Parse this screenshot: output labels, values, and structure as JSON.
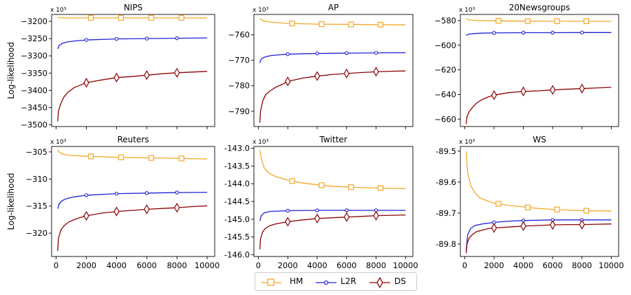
{
  "colors": {
    "HM": "#f5a623",
    "L2R": "#1f1fd6",
    "DS": "#8b0000"
  },
  "figure": {
    "ylabel": "Log-likelihood",
    "exponent_label": "x 10³"
  },
  "legend": {
    "entries": [
      "HM",
      "L2R",
      "DS"
    ]
  },
  "chart_data": [
    {
      "type": "line",
      "title": "NIPS",
      "xlim": [
        -300,
        10500
      ],
      "ylim": [
        -3505,
        -3180
      ],
      "yticks": [
        -3200,
        -3250,
        -3300,
        -3350,
        -3400,
        -3450,
        -3500
      ],
      "xticks": [],
      "show_xticklabels": false,
      "ylabel": "Log-likelihood",
      "series": [
        {
          "name": "HM",
          "marker": "square",
          "x": [
            100,
            300,
            1000,
            2000,
            4000,
            6000,
            8000,
            10000
          ],
          "y": [
            -3188,
            -3190,
            -3190,
            -3190,
            -3190,
            -3190,
            -3190,
            -3190
          ],
          "markers_at": [
            2300,
            4300,
            6300,
            8300
          ]
        },
        {
          "name": "L2R",
          "marker": "circle",
          "x": [
            100,
            200,
            400,
            700,
            1200,
            2000,
            4000,
            6000,
            8000,
            10000
          ],
          "y": [
            -3280,
            -3270,
            -3264,
            -3260,
            -3257,
            -3254,
            -3251,
            -3250,
            -3249,
            -3248
          ],
          "markers_at": [
            2000,
            4000,
            6000,
            8000
          ]
        },
        {
          "name": "DS",
          "marker": "diamond",
          "x": [
            100,
            150,
            300,
            500,
            800,
            1200,
            1600,
            2000,
            3000,
            4000,
            5000,
            6000,
            7000,
            8000,
            9000,
            10000
          ],
          "y": [
            -3490,
            -3460,
            -3440,
            -3420,
            -3405,
            -3392,
            -3385,
            -3378,
            -3370,
            -3363,
            -3360,
            -3356,
            -3352,
            -3349,
            -3347,
            -3345
          ],
          "markers_at": [
            2000,
            4000,
            6000,
            8000
          ]
        }
      ]
    },
    {
      "type": "line",
      "title": "AP",
      "xlim": [
        -300,
        10500
      ],
      "ylim": [
        -796,
        -752
      ],
      "yticks": [
        -760,
        -770,
        -780,
        -790
      ],
      "xticks": [],
      "show_xticklabels": false,
      "ylabel": "",
      "series": [
        {
          "name": "HM",
          "marker": "square",
          "x": [
            100,
            300,
            800,
            2000,
            4000,
            6000,
            8000,
            10000
          ],
          "y": [
            -753.5,
            -754.5,
            -755.0,
            -755.5,
            -755.8,
            -755.9,
            -756.0,
            -756.1
          ],
          "markers_at": [
            2300,
            4300,
            6300,
            8300
          ]
        },
        {
          "name": "L2R",
          "marker": "circle",
          "x": [
            100,
            200,
            400,
            800,
            1300,
            2000,
            4000,
            6000,
            8000,
            10000
          ],
          "y": [
            -771,
            -769.5,
            -768.8,
            -768.2,
            -767.9,
            -767.6,
            -767.3,
            -767.2,
            -767.1,
            -767.0
          ],
          "markers_at": [
            2000,
            4000,
            6000,
            8000
          ]
        },
        {
          "name": "DS",
          "marker": "diamond",
          "x": [
            100,
            150,
            300,
            500,
            800,
            1200,
            1600,
            2000,
            3000,
            4000,
            5000,
            6000,
            7000,
            8000,
            9000,
            10000
          ],
          "y": [
            -794.5,
            -790,
            -786,
            -783.5,
            -782,
            -780.5,
            -779.5,
            -778.3,
            -777,
            -776.2,
            -775.6,
            -775.2,
            -774.8,
            -774.5,
            -774.3,
            -774.2
          ],
          "markers_at": [
            2000,
            4000,
            6000,
            8000
          ]
        }
      ]
    },
    {
      "type": "line",
      "title": "20Newsgroups",
      "xlim": [
        -300,
        10500
      ],
      "ylim": [
        -666,
        -575
      ],
      "yticks": [
        -580,
        -600,
        -620,
        -640,
        -660
      ],
      "xticks": [],
      "show_xticklabels": false,
      "ylabel": "",
      "series": [
        {
          "name": "HM",
          "marker": "square",
          "x": [
            100,
            300,
            1000,
            2000,
            4000,
            6000,
            8000,
            10000
          ],
          "y": [
            -578.5,
            -579.5,
            -580,
            -580.2,
            -580.4,
            -580.5,
            -580.5,
            -580.6
          ],
          "markers_at": [
            2300,
            4300,
            6300,
            8300
          ]
        },
        {
          "name": "L2R",
          "marker": "circle",
          "x": [
            100,
            250,
            600,
            1200,
            2000,
            4000,
            6000,
            8000,
            10000
          ],
          "y": [
            -592,
            -591,
            -590.5,
            -590.2,
            -590,
            -589.8,
            -589.8,
            -589.7,
            -589.7
          ],
          "markers_at": [
            2000,
            4000,
            6000,
            8000
          ]
        },
        {
          "name": "DS",
          "marker": "diamond",
          "x": [
            100,
            150,
            300,
            500,
            800,
            1200,
            1600,
            2000,
            3000,
            4000,
            5000,
            6000,
            7000,
            8000,
            9000,
            10000
          ],
          "y": [
            -664,
            -658,
            -654,
            -651,
            -647,
            -644,
            -642,
            -640.5,
            -638.5,
            -637.5,
            -637,
            -636.3,
            -635.7,
            -635.2,
            -634.7,
            -634.2
          ],
          "markers_at": [
            2000,
            4000,
            6000,
            8000
          ]
        }
      ]
    },
    {
      "type": "line",
      "title": "Reuters",
      "xlim": [
        -300,
        10500
      ],
      "ylim": [
        -324.3,
        -304
      ],
      "yticks": [
        -305,
        -310,
        -315,
        -320
      ],
      "xticks": [
        0,
        2000,
        4000,
        6000,
        8000,
        10000
      ],
      "show_xticklabels": true,
      "ylabel": "Log-likelihood",
      "series": [
        {
          "name": "HM",
          "marker": "square",
          "x": [
            100,
            200,
            400,
            800,
            1200,
            2000,
            4000,
            6000,
            8000,
            10000
          ],
          "y": [
            -304.6,
            -305.0,
            -305.4,
            -305.6,
            -305.7,
            -305.8,
            -306.0,
            -306.1,
            -306.2,
            -306.3
          ],
          "markers_at": [
            2300,
            4300,
            6300,
            8300
          ]
        },
        {
          "name": "L2R",
          "marker": "circle",
          "x": [
            100,
            200,
            400,
            700,
            1200,
            2000,
            4000,
            6000,
            8000,
            10000
          ],
          "y": [
            -315.5,
            -314.6,
            -314.0,
            -313.6,
            -313.3,
            -313.0,
            -312.7,
            -312.6,
            -312.5,
            -312.45
          ],
          "markers_at": [
            2000,
            4000,
            6000,
            8000
          ]
        },
        {
          "name": "DS",
          "marker": "diamond",
          "x": [
            100,
            150,
            300,
            500,
            800,
            1200,
            1600,
            2000,
            3000,
            4000,
            5000,
            6000,
            7000,
            8000,
            9000,
            10000
          ],
          "y": [
            -323.3,
            -321,
            -319.5,
            -318.7,
            -318.0,
            -317.5,
            -317.1,
            -316.8,
            -316.3,
            -316.0,
            -315.8,
            -315.6,
            -315.45,
            -315.3,
            -315.1,
            -314.95
          ],
          "markers_at": [
            2000,
            4000,
            6000,
            8000
          ]
        }
      ]
    },
    {
      "type": "line",
      "title": "Twitter",
      "xlim": [
        -300,
        10500
      ],
      "ylim": [
        -146.05,
        -142.95
      ],
      "yticks": [
        -143.0,
        -143.5,
        -144.0,
        -144.5,
        -145.0,
        -145.5,
        -146.0
      ],
      "ytick_labels": [
        "-143.0",
        "-143.5",
        "-144.0",
        "-144.5",
        "-145.0",
        "-145.5",
        "-146.0"
      ],
      "xticks": [
        0,
        2000,
        4000,
        6000,
        8000,
        10000
      ],
      "show_xticklabels": true,
      "ylabel": "",
      "series": [
        {
          "name": "HM",
          "marker": "square",
          "x": [
            100,
            200,
            400,
            700,
            1200,
            2000,
            3000,
            4000,
            5000,
            6000,
            7000,
            8000,
            9000,
            10000
          ],
          "y": [
            -143.05,
            -143.3,
            -143.55,
            -143.7,
            -143.8,
            -143.9,
            -143.98,
            -144.03,
            -144.07,
            -144.09,
            -144.11,
            -144.12,
            -144.13,
            -144.14
          ],
          "markers_at": [
            2300,
            4300,
            6300,
            8300
          ]
        },
        {
          "name": "L2R",
          "marker": "circle",
          "x": [
            100,
            200,
            400,
            800,
            1500,
            2000,
            4000,
            6000,
            8000,
            10000
          ],
          "y": [
            -145.05,
            -144.9,
            -144.82,
            -144.78,
            -144.77,
            -144.76,
            -144.75,
            -144.75,
            -144.75,
            -144.75
          ],
          "markers_at": [
            2000,
            4000,
            6000,
            8000
          ]
        },
        {
          "name": "DS",
          "marker": "diamond",
          "x": [
            100,
            150,
            300,
            500,
            800,
            1200,
            1600,
            2000,
            3000,
            4000,
            5000,
            6000,
            7000,
            8000,
            9000,
            10000
          ],
          "y": [
            -145.85,
            -145.55,
            -145.35,
            -145.25,
            -145.18,
            -145.13,
            -145.1,
            -145.07,
            -145.02,
            -144.98,
            -144.96,
            -144.94,
            -144.92,
            -144.9,
            -144.89,
            -144.88
          ],
          "markers_at": [
            2000,
            4000,
            6000,
            8000
          ]
        }
      ]
    },
    {
      "type": "line",
      "title": "WS",
      "xlim": [
        -300,
        10500
      ],
      "ylim": [
        -89.84,
        -89.485
      ],
      "yticks": [
        -89.5,
        -89.6,
        -89.7,
        -89.8
      ],
      "ytick_labels": [
        "-89.5",
        "-89.6",
        "-89.7",
        "-89.8"
      ],
      "xticks": [
        0,
        2000,
        4000,
        6000,
        8000,
        10000
      ],
      "show_xticklabels": true,
      "ylabel": "",
      "series": [
        {
          "name": "HM",
          "marker": "square",
          "x": [
            100,
            200,
            400,
            700,
            1000,
            1500,
            2000,
            3000,
            4000,
            5000,
            6000,
            7000,
            8000,
            9000,
            10000
          ],
          "y": [
            -89.5,
            -89.57,
            -89.61,
            -89.635,
            -89.65,
            -89.66,
            -89.668,
            -89.675,
            -89.68,
            -89.685,
            -89.688,
            -89.69,
            -89.692,
            -89.693,
            -89.693
          ],
          "markers_at": [
            2300,
            4300,
            6300,
            8300
          ]
        },
        {
          "name": "L2R",
          "marker": "circle",
          "x": [
            100,
            200,
            400,
            700,
            1200,
            2000,
            3000,
            4000,
            6000,
            8000,
            10000
          ],
          "y": [
            -89.82,
            -89.77,
            -89.75,
            -89.74,
            -89.735,
            -89.73,
            -89.726,
            -89.724,
            -89.722,
            -89.722,
            -89.722
          ],
          "markers_at": [
            2000,
            4000,
            6000,
            8000
          ]
        },
        {
          "name": "DS",
          "marker": "diamond",
          "x": [
            100,
            150,
            300,
            500,
            800,
            1200,
            1600,
            2000,
            3000,
            4000,
            5000,
            6000,
            7000,
            8000,
            9000,
            10000
          ],
          "y": [
            -89.83,
            -89.8,
            -89.78,
            -89.77,
            -89.76,
            -89.755,
            -89.75,
            -89.748,
            -89.745,
            -89.742,
            -89.74,
            -89.738,
            -89.737,
            -89.737,
            -89.736,
            -89.735
          ],
          "markers_at": [
            2000,
            4000,
            6000,
            8000
          ]
        }
      ]
    }
  ]
}
